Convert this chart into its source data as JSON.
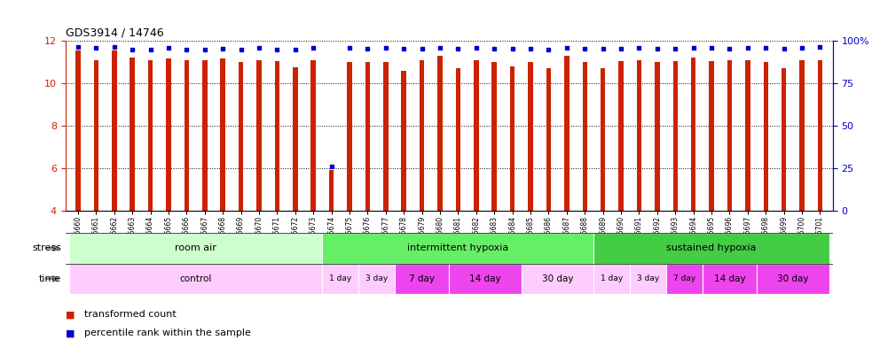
{
  "title": "GDS3914 / 14746",
  "samples": [
    "GSM215660",
    "GSM215661",
    "GSM215662",
    "GSM215663",
    "GSM215664",
    "GSM215665",
    "GSM215666",
    "GSM215667",
    "GSM215668",
    "GSM215669",
    "GSM215670",
    "GSM215671",
    "GSM215672",
    "GSM215673",
    "GSM215674",
    "GSM215675",
    "GSM215676",
    "GSM215677",
    "GSM215678",
    "GSM215679",
    "GSM215680",
    "GSM215681",
    "GSM215682",
    "GSM215683",
    "GSM215684",
    "GSM215685",
    "GSM215686",
    "GSM215687",
    "GSM215688",
    "GSM215689",
    "GSM215690",
    "GSM215691",
    "GSM215692",
    "GSM215693",
    "GSM215694",
    "GSM215695",
    "GSM215696",
    "GSM215697",
    "GSM215698",
    "GSM215699",
    "GSM215700",
    "GSM215701"
  ],
  "red_values": [
    11.55,
    11.1,
    11.55,
    11.2,
    11.1,
    11.15,
    11.1,
    11.1,
    11.15,
    11.0,
    11.1,
    11.05,
    10.75,
    11.1,
    5.9,
    11.0,
    11.0,
    11.0,
    10.6,
    11.1,
    11.3,
    10.7,
    11.1,
    11.0,
    10.8,
    11.0,
    10.7,
    11.3,
    11.0,
    10.7,
    11.05,
    11.1,
    11.0,
    11.05,
    11.2,
    11.05,
    11.1,
    11.1,
    11.0,
    10.7,
    11.1,
    11.1
  ],
  "blue_values": [
    11.72,
    11.65,
    11.72,
    11.58,
    11.58,
    11.66,
    11.58,
    11.58,
    11.62,
    11.58,
    11.66,
    11.58,
    11.58,
    11.66,
    6.1,
    11.66,
    11.62,
    11.66,
    11.62,
    11.62,
    11.66,
    11.62,
    11.66,
    11.62,
    11.62,
    11.62,
    11.58,
    11.66,
    11.62,
    11.62,
    11.62,
    11.66,
    11.62,
    11.62,
    11.66,
    11.66,
    11.62,
    11.66,
    11.66,
    11.62,
    11.66,
    11.72
  ],
  "bar_bottom": 4.0,
  "ylim_left": [
    4,
    12
  ],
  "yticks_left": [
    4,
    6,
    8,
    10,
    12
  ],
  "yticks_right": [
    0,
    25,
    50,
    75,
    100
  ],
  "ytick_labels_right": [
    "0",
    "25",
    "50",
    "75",
    "100%"
  ],
  "red_color": "#cc2200",
  "blue_color": "#0000cc",
  "bar_width": 0.45,
  "stress_groups": [
    {
      "label": "room air",
      "start": 0,
      "end": 14,
      "color": "#ccffcc"
    },
    {
      "label": "intermittent hypoxia",
      "start": 14,
      "end": 29,
      "color": "#66ee66"
    },
    {
      "label": "sustained hypoxia",
      "start": 29,
      "end": 42,
      "color": "#44cc44"
    }
  ],
  "time_groups": [
    {
      "label": "control",
      "start": 0,
      "end": 14,
      "color": "#ffccff"
    },
    {
      "label": "1 day",
      "start": 14,
      "end": 16,
      "color": "#ffccff"
    },
    {
      "label": "3 day",
      "start": 16,
      "end": 18,
      "color": "#ffccff"
    },
    {
      "label": "7 day",
      "start": 18,
      "end": 21,
      "color": "#ee44ee"
    },
    {
      "label": "14 day",
      "start": 21,
      "end": 25,
      "color": "#ee44ee"
    },
    {
      "label": "30 day",
      "start": 25,
      "end": 29,
      "color": "#ffccff"
    },
    {
      "label": "1 day",
      "start": 29,
      "end": 31,
      "color": "#ffccff"
    },
    {
      "label": "3 day",
      "start": 31,
      "end": 33,
      "color": "#ffccff"
    },
    {
      "label": "7 day",
      "start": 33,
      "end": 35,
      "color": "#ee44ee"
    },
    {
      "label": "14 day",
      "start": 35,
      "end": 38,
      "color": "#ee44ee"
    },
    {
      "label": "30 day",
      "start": 38,
      "end": 42,
      "color": "#ee44ee"
    }
  ],
  "legend_items": [
    {
      "label": "transformed count",
      "color": "#cc2200"
    },
    {
      "label": "percentile rank within the sample",
      "color": "#0000cc"
    }
  ]
}
